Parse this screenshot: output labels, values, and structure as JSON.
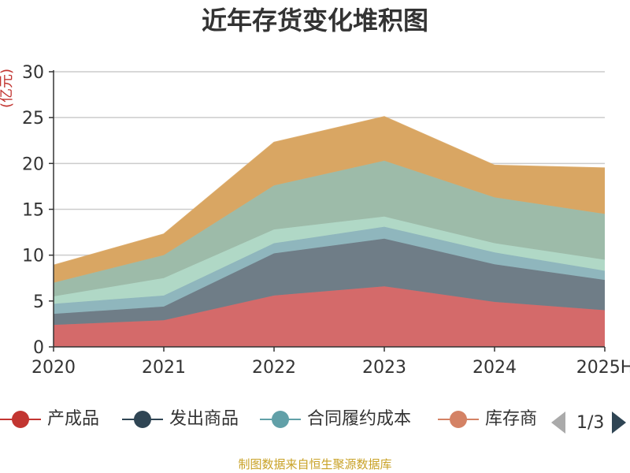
{
  "title": "近年存货变化堆积图",
  "source": "制图数据来自恒生聚源数据库",
  "legend": {
    "items": [
      {
        "label": "产成品",
        "color": "#c23531"
      },
      {
        "label": "发出商品",
        "color": "#2f4554"
      },
      {
        "label": "合同履约成本",
        "color": "#61a0a8"
      },
      {
        "label": "库存商",
        "color": "#d48265"
      }
    ],
    "page": "1/3"
  },
  "chart_data": {
    "type": "area",
    "stacked": true,
    "ylabel": "(亿元)",
    "xlabel": "",
    "categories": [
      "2020",
      "2021",
      "2022",
      "2023",
      "2024",
      "2025H"
    ],
    "ylim": [
      0,
      30
    ],
    "yticks": [
      0,
      5,
      10,
      15,
      20,
      25,
      30
    ],
    "grid": true,
    "legend_position": "bottom",
    "series": [
      {
        "name": "产成品",
        "color": "#d46a6a",
        "values": [
          2.4,
          2.9,
          5.6,
          6.6,
          4.9,
          4.0
        ]
      },
      {
        "name": "发出商品",
        "color": "#6f7d87",
        "values": [
          1.2,
          1.5,
          4.6,
          5.2,
          4.1,
          3.3
        ]
      },
      {
        "name": "合同履约成本",
        "color": "#8fb6bd",
        "values": [
          1.1,
          1.2,
          1.1,
          1.3,
          1.3,
          1.0
        ]
      },
      {
        "name": "",
        "color": "#b0d8c6",
        "values": [
          0.8,
          1.9,
          1.5,
          1.1,
          1.0,
          1.2
        ]
      },
      {
        "name": "",
        "color": "#9dbba9",
        "values": [
          1.5,
          2.5,
          4.8,
          6.1,
          5.0,
          5.0
        ]
      },
      {
        "name": "",
        "color": "#d9a663",
        "values": [
          1.9,
          2.3,
          4.7,
          4.8,
          3.5,
          5.0
        ]
      }
    ]
  }
}
